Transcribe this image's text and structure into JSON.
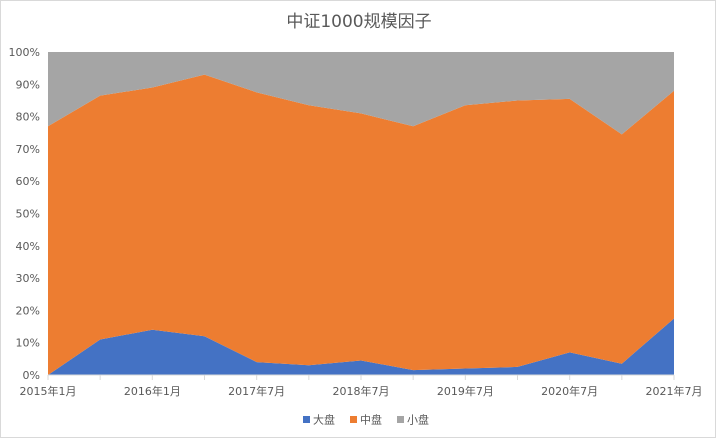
{
  "chart_data": {
    "type": "area",
    "stacking": "percent",
    "title": "中证1000规模因子",
    "xlabel": "",
    "ylabel": "",
    "ylim": [
      0,
      100
    ],
    "y_ticks": [
      "0%",
      "10%",
      "20%",
      "30%",
      "40%",
      "50%",
      "60%",
      "70%",
      "80%",
      "90%",
      "100%"
    ],
    "x_tick_labels": [
      "2015年1月",
      "2016年1月",
      "2017年7月",
      "2018年7月",
      "2019年7月",
      "2020年7月",
      "2021年7月"
    ],
    "x_tick_label_indices": [
      0,
      2,
      4,
      6,
      8,
      10,
      12
    ],
    "points_count": 13,
    "grid": false,
    "legend_position": "bottom",
    "series": [
      {
        "name": "大盘",
        "color": "#4472C4",
        "values": [
          0,
          11,
          14,
          12,
          4,
          3,
          4.5,
          1.5,
          2,
          2.5,
          7,
          3.5,
          17.5
        ]
      },
      {
        "name": "中盘",
        "color": "#ED7D31",
        "values": [
          77,
          75.5,
          75,
          81,
          83.5,
          80.5,
          76.5,
          75.5,
          81.5,
          82.5,
          78.5,
          71,
          70.5
        ]
      },
      {
        "name": "小盘",
        "color": "#A5A5A5",
        "values": [
          23,
          13.5,
          11,
          7,
          12.5,
          16.5,
          19,
          23,
          16.5,
          15,
          14.5,
          25.5,
          12
        ]
      }
    ]
  }
}
